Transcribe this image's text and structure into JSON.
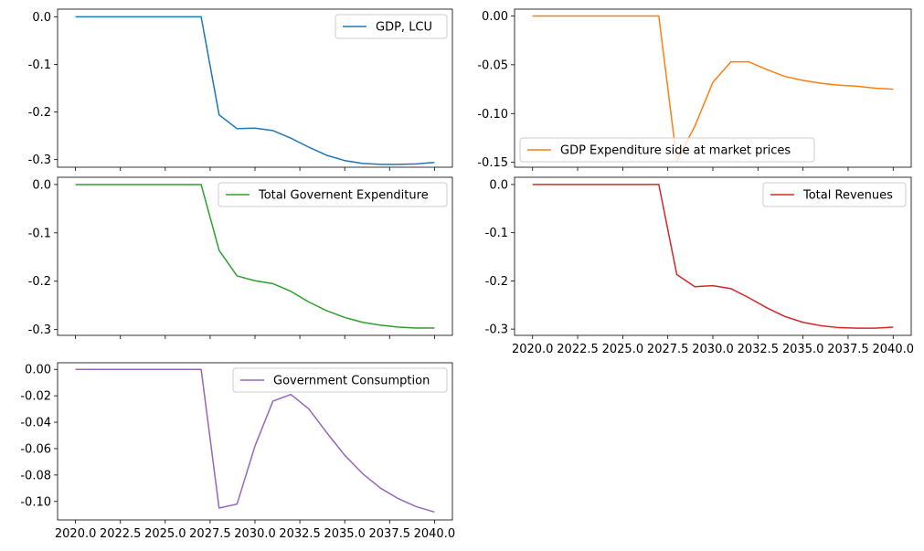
{
  "chart_data": [
    {
      "type": "line",
      "x": [
        2020,
        2021,
        2022,
        2023,
        2024,
        2025,
        2026,
        2027,
        2028,
        2029,
        2030,
        2031,
        2032,
        2033,
        2034,
        2035,
        2036,
        2037,
        2038,
        2039,
        2040
      ],
      "series": [
        {
          "name": "GDP, LCU",
          "color": "#1f77b4",
          "values": [
            0,
            0,
            0,
            0,
            0,
            0,
            0,
            0,
            -0.206,
            -0.235,
            -0.234,
            -0.239,
            -0.255,
            -0.274,
            -0.291,
            -0.302,
            -0.308,
            -0.31,
            -0.31,
            -0.309,
            -0.306
          ]
        }
      ],
      "ylim": [
        -0.316,
        0.016
      ],
      "yticks": [
        "0.0",
        "-0.1",
        "-0.2",
        "-0.3"
      ],
      "ytick_values": [
        0,
        -0.1,
        -0.2,
        -0.3
      ],
      "xticks": [],
      "legend": "upper right"
    },
    {
      "type": "line",
      "x": [
        2020,
        2021,
        2022,
        2023,
        2024,
        2025,
        2026,
        2027,
        2028,
        2029,
        2030,
        2031,
        2032,
        2033,
        2034,
        2035,
        2036,
        2037,
        2038,
        2039,
        2040
      ],
      "series": [
        {
          "name": "GDP Expenditure side at market prices",
          "color": "#ff7f0e",
          "values": [
            0,
            0,
            0,
            0,
            0,
            0,
            0,
            0,
            -0.148,
            -0.113,
            -0.068,
            -0.047,
            -0.047,
            -0.055,
            -0.062,
            -0.066,
            -0.069,
            -0.071,
            -0.072,
            -0.074,
            -0.075
          ]
        }
      ],
      "ylim": [
        -0.155,
        0.007
      ],
      "yticks": [
        "0.00",
        "-0.05",
        "-0.10",
        "-0.15"
      ],
      "ytick_values": [
        0,
        -0.05,
        -0.1,
        -0.15
      ],
      "xticks": [],
      "legend": "lower left"
    },
    {
      "type": "line",
      "x": [
        2020,
        2021,
        2022,
        2023,
        2024,
        2025,
        2026,
        2027,
        2028,
        2029,
        2030,
        2031,
        2032,
        2033,
        2034,
        2035,
        2036,
        2037,
        2038,
        2039,
        2040
      ],
      "series": [
        {
          "name": "Total Governent Expenditure",
          "color": "#2ca02c",
          "values": [
            0,
            0,
            0,
            0,
            0,
            0,
            0,
            0,
            -0.136,
            -0.189,
            -0.199,
            -0.205,
            -0.221,
            -0.243,
            -0.261,
            -0.275,
            -0.285,
            -0.291,
            -0.295,
            -0.297,
            -0.297
          ]
        }
      ],
      "ylim": [
        -0.312,
        0.015
      ],
      "yticks": [
        "0.0",
        "-0.1",
        "-0.2",
        "-0.3"
      ],
      "ytick_values": [
        0,
        -0.1,
        -0.2,
        -0.3
      ],
      "xticks": [],
      "legend": "upper right"
    },
    {
      "type": "line",
      "x": [
        2020,
        2021,
        2022,
        2023,
        2024,
        2025,
        2026,
        2027,
        2028,
        2029,
        2030,
        2031,
        2032,
        2033,
        2034,
        2035,
        2036,
        2037,
        2038,
        2039,
        2040
      ],
      "series": [
        {
          "name": "Total Revenues",
          "color": "#d62728",
          "values": [
            0,
            0,
            0,
            0,
            0,
            0,
            0,
            0,
            -0.187,
            -0.212,
            -0.21,
            -0.216,
            -0.235,
            -0.256,
            -0.274,
            -0.286,
            -0.293,
            -0.297,
            -0.298,
            -0.298,
            -0.296
          ]
        }
      ],
      "ylim": [
        -0.313,
        0.015
      ],
      "yticks": [
        "0.0",
        "-0.1",
        "-0.2",
        "-0.3"
      ],
      "ytick_values": [
        0,
        -0.1,
        -0.2,
        -0.3
      ],
      "xticks": [
        "2020.0",
        "2022.5",
        "2025.0",
        "2027.5",
        "2030.0",
        "2032.5",
        "2035.0",
        "2037.5",
        "2040.0"
      ],
      "legend": "upper right"
    },
    {
      "type": "line",
      "x": [
        2020,
        2021,
        2022,
        2023,
        2024,
        2025,
        2026,
        2027,
        2028,
        2029,
        2030,
        2031,
        2032,
        2033,
        2034,
        2035,
        2036,
        2037,
        2038,
        2039,
        2040
      ],
      "series": [
        {
          "name": "Government Consumption",
          "color": "#9467bd",
          "values": [
            0,
            0,
            0,
            0,
            0,
            0,
            0,
            0,
            -0.105,
            -0.102,
            -0.058,
            -0.024,
            -0.019,
            -0.03,
            -0.048,
            -0.065,
            -0.079,
            -0.09,
            -0.098,
            -0.104,
            -0.108
          ]
        }
      ],
      "ylim": [
        -0.114,
        0.005
      ],
      "yticks": [
        "0.00",
        "-0.02",
        "-0.04",
        "-0.06",
        "-0.08",
        "-0.10"
      ],
      "ytick_values": [
        0,
        -0.02,
        -0.04,
        -0.06,
        -0.08,
        -0.1
      ],
      "xticks": [
        "2020.0",
        "2022.5",
        "2025.0",
        "2027.5",
        "2030.0",
        "2032.5",
        "2035.0",
        "2037.5",
        "2040.0"
      ],
      "legend": "upper right"
    }
  ]
}
